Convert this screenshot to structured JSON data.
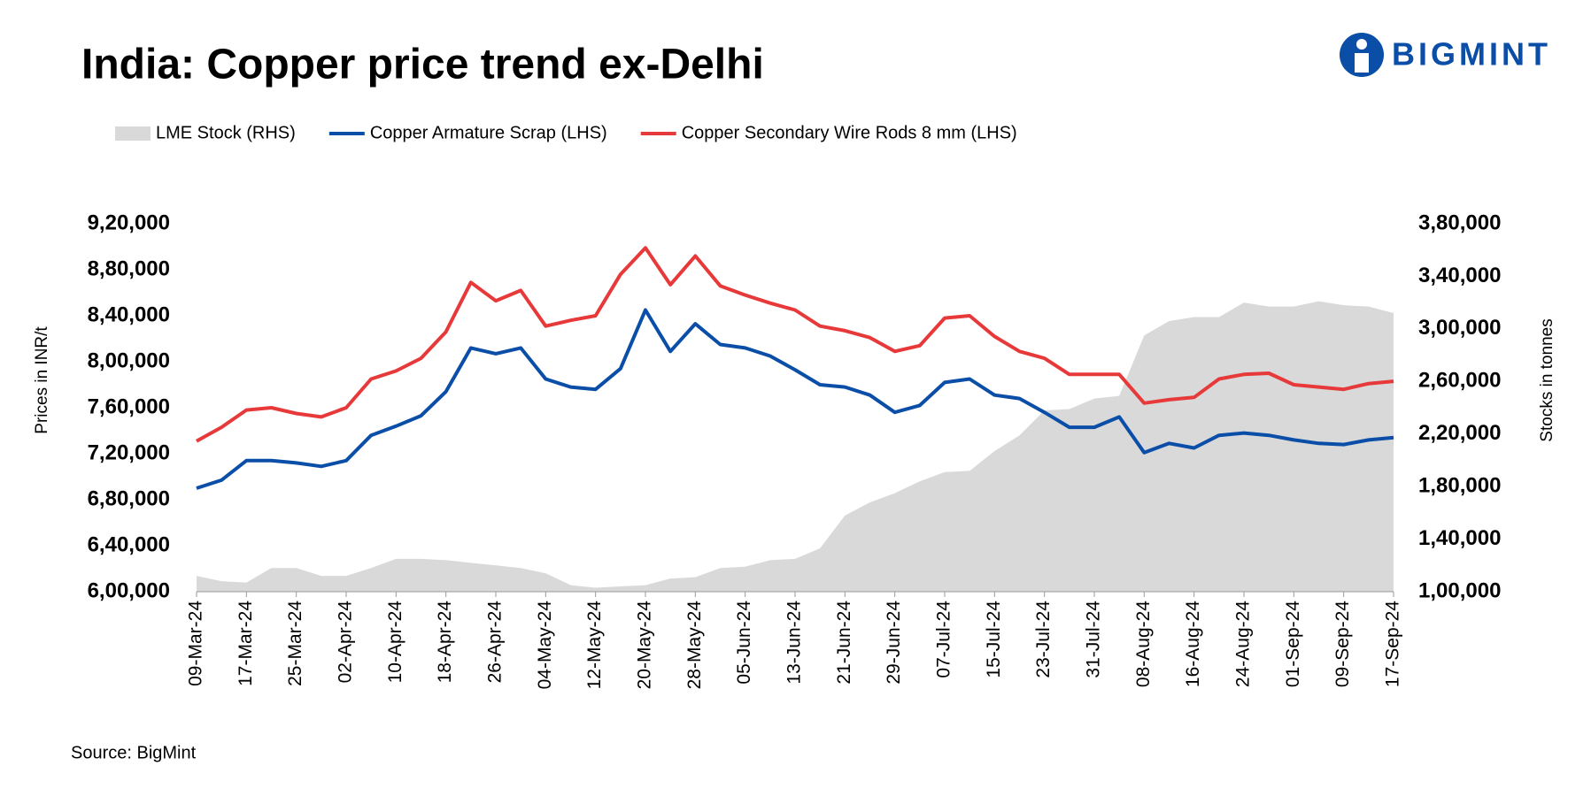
{
  "chart_data": {
    "type": "line",
    "title": "India: Copper price trend ex-Delhi",
    "logo": "BIGMINT",
    "source": "Source: BigMint",
    "y_label": "Prices in INR/t",
    "y2_label": "Stocks in tonnes",
    "categories": [
      "09-Mar-24",
      null,
      "17-Mar-24",
      null,
      "25-Mar-24",
      null,
      "02-Apr-24",
      null,
      "10-Apr-24",
      null,
      "18-Apr-24",
      null,
      "26-Apr-24",
      null,
      "04-May-24",
      null,
      "12-May-24",
      null,
      "20-May-24",
      null,
      "28-May-24",
      null,
      "05-Jun-24",
      null,
      "13-Jun-24",
      null,
      "21-Jun-24",
      null,
      "29-Jun-24",
      null,
      "07-Jul-24",
      null,
      "15-Jul-24",
      null,
      "23-Jul-24",
      null,
      "31-Jul-24",
      null,
      "08-Aug-24",
      null,
      "16-Aug-24",
      null,
      "24-Aug-24",
      null,
      "01-Sep-24",
      null,
      "09-Sep-24",
      null,
      "17-Sep-24"
    ],
    "series": [
      {
        "name": "LME Stock (RHS)",
        "color": "#d9d9d9",
        "style": "area",
        "axis": "y2",
        "values": [
          112000,
          108000,
          107000,
          118000,
          118000,
          112000,
          112000,
          118000,
          125000,
          125000,
          124000,
          122000,
          120000,
          118000,
          114000,
          105000,
          103000,
          104000,
          105000,
          110000,
          111000,
          118000,
          119000,
          124000,
          125000,
          133000,
          158000,
          168000,
          175000,
          184000,
          191000,
          192000,
          207000,
          219000,
          238000,
          239000,
          247000,
          249000,
          295000,
          306000,
          309000,
          309000,
          320000,
          317000,
          317000,
          321000,
          318000,
          317000,
          312000
        ]
      },
      {
        "name": "Copper Armature Scrap (LHS)",
        "color": "#0a4ea8",
        "style": "line",
        "axis": "y",
        "values": [
          690000,
          697000,
          714000,
          714000,
          712000,
          709000,
          714000,
          736000,
          744000,
          753000,
          774000,
          812000,
          807000,
          812000,
          785000,
          778000,
          776000,
          794000,
          845000,
          809000,
          833000,
          815000,
          812000,
          805000,
          793000,
          780000,
          778000,
          771000,
          756000,
          762000,
          782000,
          785000,
          771000,
          768000,
          756000,
          743000,
          743000,
          752000,
          721000,
          729000,
          725000,
          736000,
          738000,
          736000,
          732000,
          729000,
          728000,
          732000,
          734000
        ]
      },
      {
        "name": "Copper Secondary Wire Rods 8 mm (LHS)",
        "color": "#e8393a",
        "style": "line",
        "axis": "y",
        "values": [
          731000,
          743000,
          758000,
          760000,
          755000,
          752000,
          760000,
          785000,
          792000,
          803000,
          826000,
          869000,
          853000,
          862000,
          831000,
          836000,
          840000,
          876000,
          899000,
          867000,
          892000,
          866000,
          858000,
          851000,
          845000,
          831000,
          827000,
          821000,
          809000,
          814000,
          838000,
          840000,
          822000,
          809000,
          803000,
          789000,
          789000,
          789000,
          764000,
          767000,
          769000,
          785000,
          789000,
          790000,
          780000,
          778000,
          776000,
          781000,
          783000
        ]
      }
    ],
    "ylim": [
      600000,
      920000
    ],
    "yticks": [
      {
        "value": 600000,
        "label": "6,00,000"
      },
      {
        "value": 640000,
        "label": "6,40,000"
      },
      {
        "value": 680000,
        "label": "6,80,000"
      },
      {
        "value": 720000,
        "label": "7,20,000"
      },
      {
        "value": 760000,
        "label": "7,60,000"
      },
      {
        "value": 800000,
        "label": "8,00,000"
      },
      {
        "value": 840000,
        "label": "8,40,000"
      },
      {
        "value": 880000,
        "label": "8,80,000"
      },
      {
        "value": 920000,
        "label": "9,20,000"
      }
    ],
    "y2lim": [
      100000,
      380000
    ],
    "y2ticks": [
      {
        "value": 100000,
        "label": "1,00,000"
      },
      {
        "value": 140000,
        "label": "1,40,000"
      },
      {
        "value": 180000,
        "label": "1,80,000"
      },
      {
        "value": 220000,
        "label": "2,20,000"
      },
      {
        "value": 260000,
        "label": "2,60,000"
      },
      {
        "value": 300000,
        "label": "3,00,000"
      },
      {
        "value": 340000,
        "label": "3,40,000"
      },
      {
        "value": 380000,
        "label": "3,80,000"
      }
    ],
    "grid": false,
    "legend": "top"
  }
}
